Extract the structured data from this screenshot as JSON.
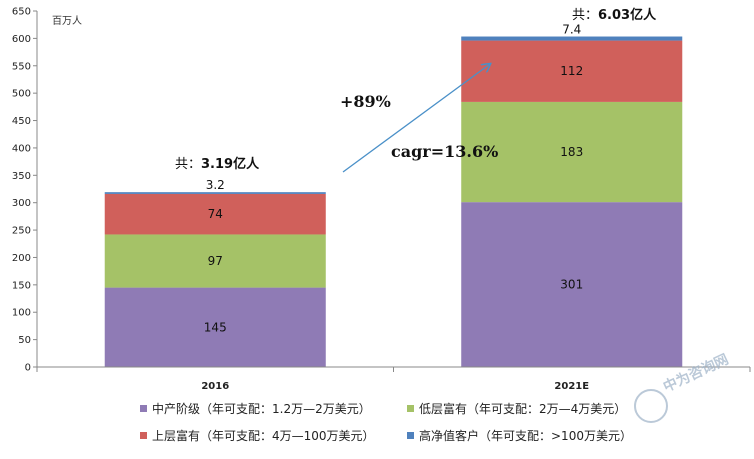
{
  "chart_data": {
    "type": "bar",
    "stacked": true,
    "unit_label": "百万人",
    "categories": [
      "2016",
      "2021E"
    ],
    "series": [
      {
        "name": "中产阶级（年可支配：1.2万—2万美元）",
        "color": "#8f7bb5",
        "values": [
          145,
          301
        ]
      },
      {
        "name": "低层富有（年可支配：2万—4万美元）",
        "color": "#a5c267",
        "values": [
          97,
          183
        ]
      },
      {
        "name": "上层富有（年可支配：4万—100万美元）",
        "color": "#d0605b",
        "values": [
          74,
          112
        ]
      },
      {
        "name": "高净值客户（年可支配：>100万美元）",
        "color": "#4f81bd",
        "values": [
          3.2,
          7.4
        ]
      }
    ],
    "totals": [
      {
        "prefix": "共：",
        "value": "3.19亿人"
      },
      {
        "prefix": "共：",
        "value": "6.03亿人"
      }
    ],
    "annotations": {
      "growth": "+89%",
      "cagr": "cagr=13.6%"
    },
    "ylim": [
      0,
      650
    ],
    "yticks": [
      0,
      50,
      100,
      150,
      200,
      250,
      300,
      350,
      400,
      450,
      500,
      550,
      600,
      650
    ],
    "legend_position": "bottom",
    "grid": false
  },
  "watermark": "中为咨询网"
}
